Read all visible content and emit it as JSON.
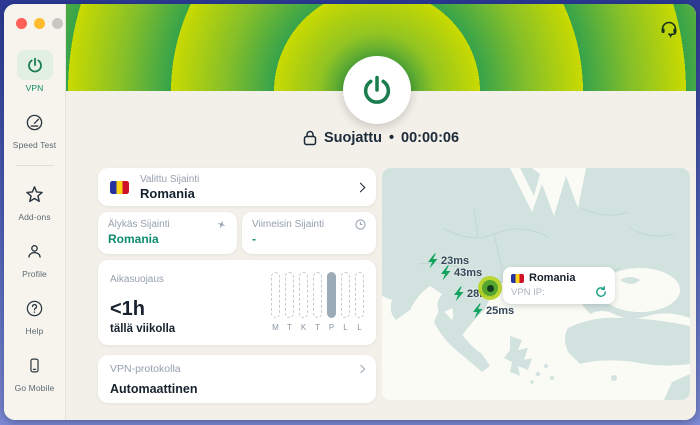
{
  "colors": {
    "brand_lime": "#c9da00",
    "ring_green": "#36a34b",
    "brand_green": "#1d7c4f",
    "accent_teal": "#0f8b6d",
    "latency_green": "#12a35f",
    "map_land": "#d2e3df",
    "status_text": "#1c2a39",
    "traffic_lights": [
      "#ff5f57",
      "#febc2e",
      "#c9c7c3"
    ],
    "romania_flag": [
      "#26339f",
      "#fcd116",
      "#ce1126"
    ]
  },
  "sidebar": {
    "items": [
      {
        "id": "vpn",
        "label": "VPN",
        "icon": "power-icon",
        "active": true
      },
      {
        "id": "speed-test",
        "label": "Speed Test",
        "icon": "speedometer-icon",
        "active": false
      },
      {
        "id": "divider"
      },
      {
        "id": "add-ons",
        "label": "Add-ons",
        "icon": "star-icon",
        "active": false
      },
      {
        "id": "profile",
        "label": "Profile",
        "icon": "user-icon",
        "active": false
      },
      {
        "id": "help",
        "label": "Help",
        "icon": "help-icon",
        "active": false
      },
      {
        "id": "go-mobile",
        "label": "Go Mobile",
        "icon": "phone-icon",
        "active": false
      }
    ]
  },
  "header": {
    "status": {
      "label": "Suojattu",
      "separator": "•",
      "timer": "00:00:06"
    },
    "support_icon": "headset-icon"
  },
  "cards": {
    "selected_location": {
      "label": "Valittu Sijainti",
      "value": "Romania",
      "flag": "Romania"
    },
    "smart_location": {
      "label": "Älykäs Sijainti",
      "value": "Romania",
      "icon": "sparkle-icon"
    },
    "last_location": {
      "label": "Viimeisin Sijainti",
      "value": "-",
      "icon": "clock-icon"
    },
    "time_protection": {
      "label": "Aikasuojaus",
      "value": "<1h",
      "sublabel": "tällä viikolla",
      "chart": {
        "type": "bar",
        "categories": [
          "M",
          "T",
          "K",
          "T",
          "P",
          "L",
          "L"
        ],
        "values": [
          0,
          0,
          0,
          0,
          1,
          0,
          0
        ],
        "highlight_index": 4
      }
    },
    "protocol": {
      "label": "VPN-protokolla",
      "value": "Automaattinen"
    }
  },
  "map": {
    "latency_markers": [
      {
        "label": "23ms"
      },
      {
        "label": "43ms"
      },
      {
        "label": "28ms"
      },
      {
        "label": "25ms"
      }
    ],
    "tooltip": {
      "flag": "Romania",
      "country": "Romania",
      "ip_label": "VPN IP:"
    }
  }
}
